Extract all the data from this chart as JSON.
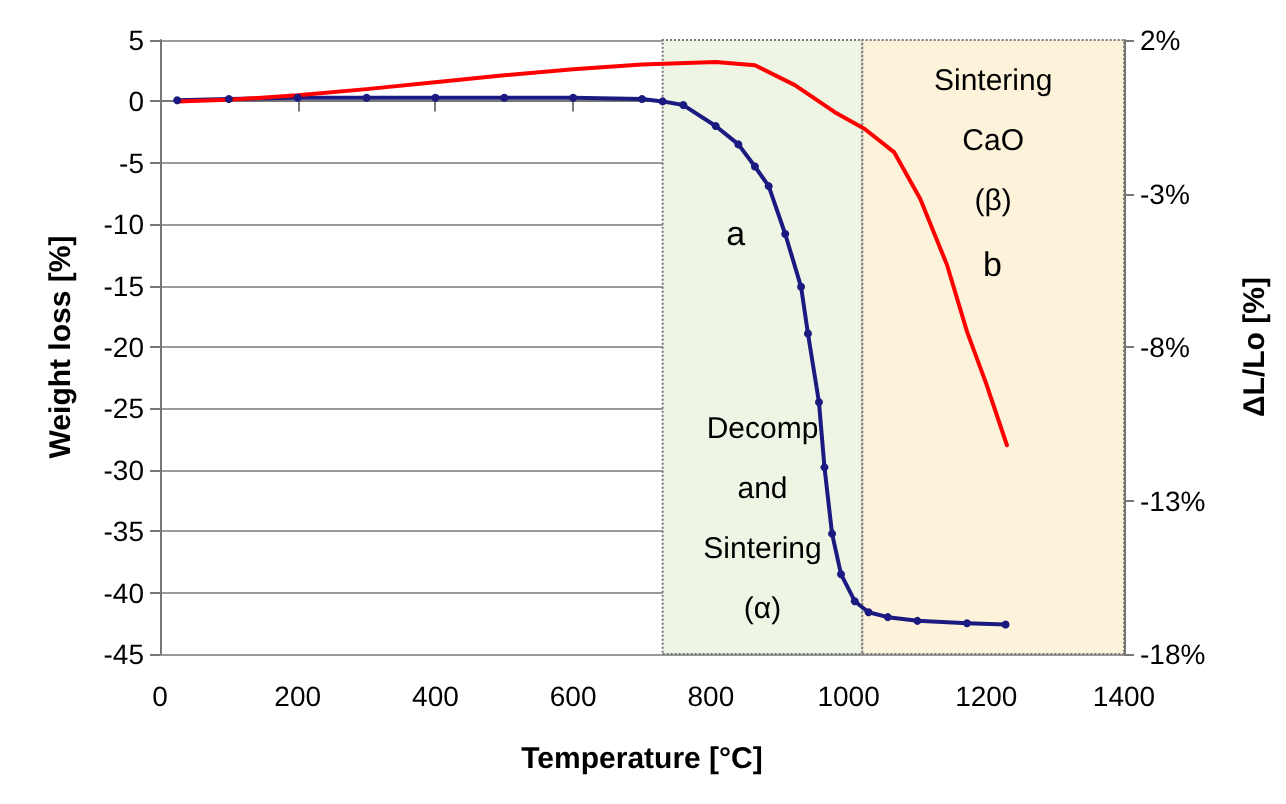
{
  "chart_data": {
    "type": "line",
    "xlabel": "Temperature [°C]",
    "ylabel": "Weight loss [%]",
    "y2label": "ΔL/Lo [%]",
    "xlim": [
      0,
      1400
    ],
    "xticks": [
      0,
      200,
      400,
      600,
      800,
      1000,
      1200,
      1400
    ],
    "ylim": [
      -45,
      5
    ],
    "yticks": [
      -45,
      -40,
      -35,
      -30,
      -25,
      -20,
      -15,
      -10,
      -5,
      0,
      5
    ],
    "y2lim": [
      -18,
      2
    ],
    "y2ticks": [
      {
        "value": -18,
        "label": "-18%"
      },
      {
        "value": -13,
        "label": "-13%"
      },
      {
        "value": -8,
        "label": "-8%"
      },
      {
        "value": -3,
        "label": "-3%"
      },
      {
        "value": 2,
        "label": "2%"
      }
    ],
    "grid": "y",
    "legend": false,
    "bands": [
      {
        "axis": "x",
        "from": 730,
        "to": 1020,
        "label": "Decomp\nand\nSintering\n(α)",
        "color": "#eef5e4"
      },
      {
        "axis": "x",
        "from": 1020,
        "to": 1400,
        "label": "Sintering\nCaO\n(β)",
        "color": "#fdf2da"
      }
    ],
    "series": [
      {
        "name": "a",
        "color": "#1a1a80",
        "marker": "circle",
        "x": [
          25,
          100,
          200,
          300,
          400,
          500,
          600,
          700,
          730,
          760,
          807,
          840,
          864,
          884,
          908,
          931,
          941,
          957,
          965,
          976,
          989,
          1009,
          1029,
          1057,
          1100,
          1172,
          1228
        ],
        "values": [
          0.1,
          0.2,
          0.3,
          0.3,
          0.3,
          0.3,
          0.3,
          0.2,
          0,
          -0.3,
          -2,
          -3.5,
          -5.3,
          -6.9,
          -10.8,
          -15.1,
          -18.9,
          -24.5,
          -29.8,
          -35.2,
          -38.5,
          -40.7,
          -41.6,
          -42,
          -42.3,
          -42.5,
          -42.6
        ]
      },
      {
        "name": "b",
        "color": "#ff0000",
        "marker": "none",
        "axis": "y2",
        "x": [
          25,
          100,
          200,
          300,
          403,
          500,
          600,
          700,
          807,
          864,
          922,
          980,
          1023,
          1066,
          1104,
          1143,
          1172,
          1200,
          1230
        ],
        "values": [
          0,
          0.05,
          0.2,
          0.4,
          0.63,
          0.85,
          1.05,
          1.2,
          1.28,
          1.18,
          0.53,
          -0.35,
          -0.89,
          -1.65,
          -3.17,
          -5.33,
          -7.5,
          -9.2,
          -11.2
        ]
      }
    ]
  }
}
